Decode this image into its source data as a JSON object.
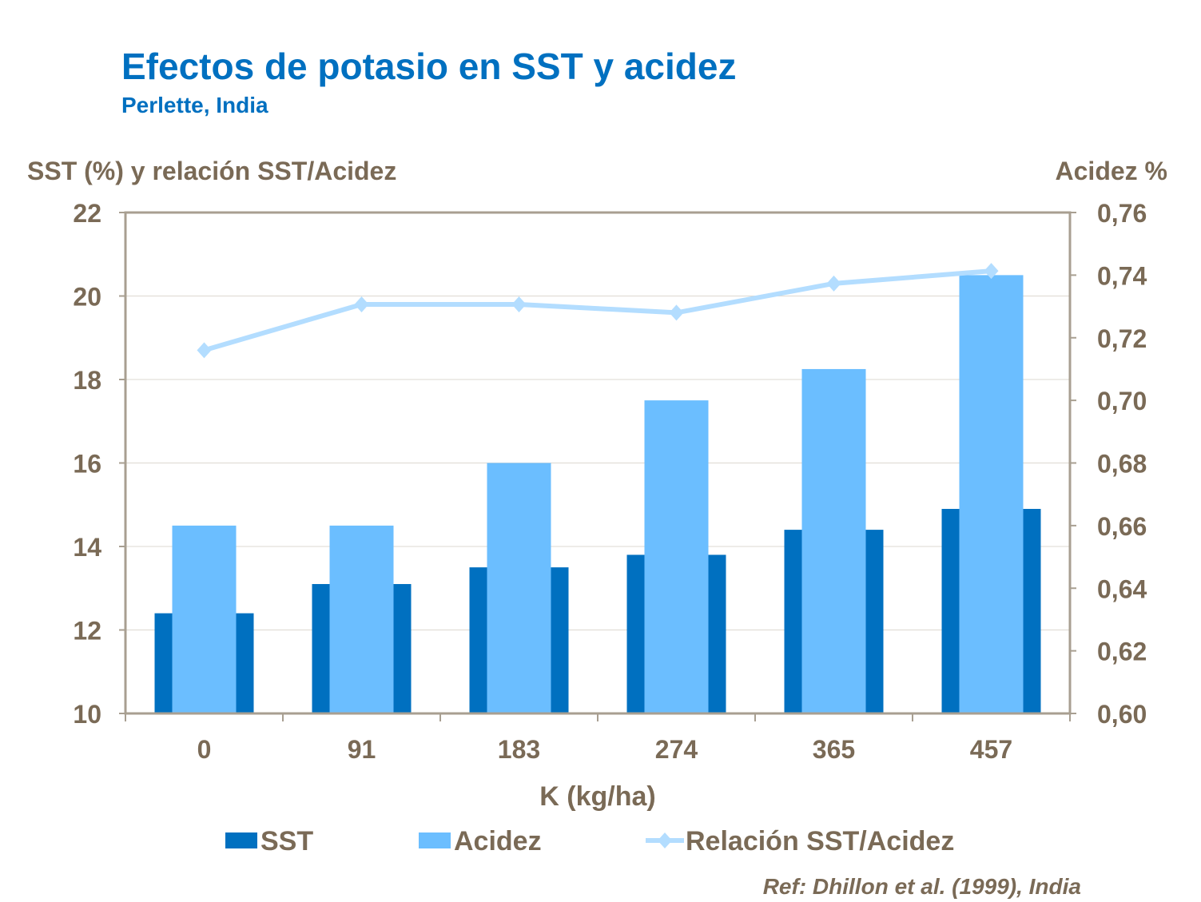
{
  "chart_data": {
    "type": "bar",
    "title": "Efectos de potasio en SST y acidez",
    "subtitle": "Perlette,  India",
    "xlabel": "K  (kg/ha)",
    "ylabel": "SST (%) y relación SST/Acidez",
    "ylabel_right": "Acidez %",
    "categories": [
      "0",
      "91",
      "183",
      "274",
      "365",
      "457"
    ],
    "ylim": [
      10,
      22
    ],
    "yticks": [
      "10",
      "12",
      "14",
      "16",
      "18",
      "20",
      "22"
    ],
    "ylim_right": [
      0.6,
      0.76
    ],
    "yticks_right": [
      "0,60",
      "0,62",
      "0,64",
      "0,66",
      "0,68",
      "0,70",
      "0,72",
      "0,74",
      "0,76"
    ],
    "series": [
      {
        "name": "SST",
        "type": "bar",
        "axis": "left",
        "color": "#0070C0",
        "values": [
          12.4,
          13.1,
          13.5,
          13.8,
          14.4,
          14.9
        ]
      },
      {
        "name": "Acidez",
        "type": "bar",
        "axis": "right",
        "color": "#6BBEFF",
        "values": [
          0.66,
          0.66,
          0.68,
          0.7,
          0.71,
          0.74
        ]
      },
      {
        "name": "Relación SST/Acidez",
        "type": "line",
        "axis": "left",
        "color": "#B3DDFF",
        "values": [
          18.7,
          19.8,
          19.8,
          19.6,
          20.3,
          20.6
        ]
      }
    ],
    "grid": true,
    "legend": "bottom",
    "reference": "Ref: Dhillon et al. (1999),  India"
  }
}
